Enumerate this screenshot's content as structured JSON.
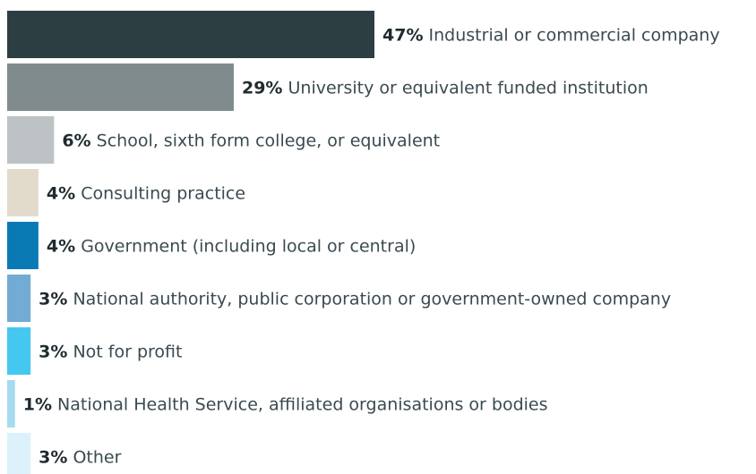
{
  "chart_data": {
    "type": "bar",
    "orientation": "horizontal",
    "categories": [
      "Industrial or commercial company",
      "University or equivalent funded institution",
      "School, sixth form college, or equivalent",
      "Consulting practice",
      "Government (including local or central)",
      "National authority, public corporation or government-owned company",
      "Not for profit",
      "National Health Service, affiliated organisations or bodies",
      "Other"
    ],
    "values": [
      47,
      29,
      6,
      4,
      4,
      3,
      3,
      1,
      3
    ],
    "value_labels": [
      "47%",
      "29%",
      "6%",
      "4%",
      "4%",
      "3%",
      "3%",
      "1%",
      "3%"
    ],
    "colors": [
      "#2d3e42",
      "#808b8e",
      "#bdc3c4",
      "#e2dacb",
      "#0a7ab5",
      "#72acd4",
      "#45c8ef",
      "#a6dbef",
      "#dcf1fa"
    ],
    "xlim": [
      0,
      47
    ]
  }
}
